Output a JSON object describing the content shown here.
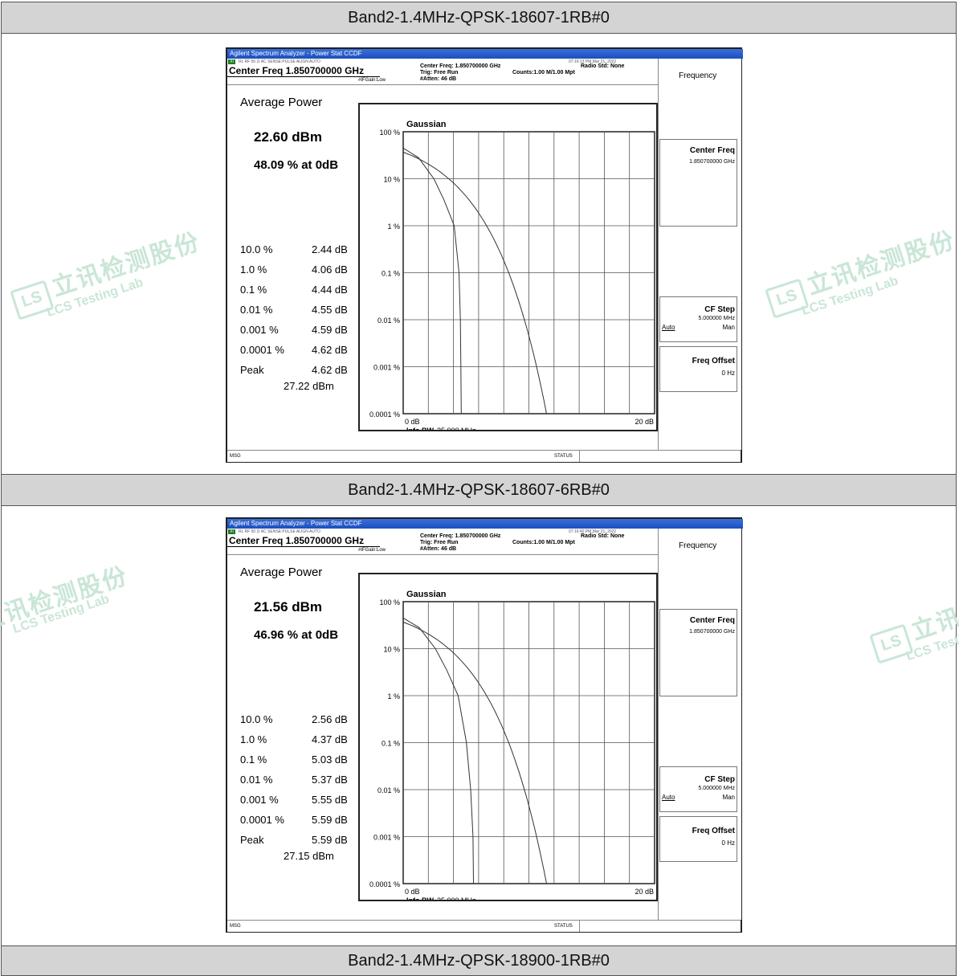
{
  "sections": [
    {
      "header": "Band2-1.4MHz-QPSK-18607-1RB#0",
      "screen": {
        "window_title": "Agilent Spectrum Analyzer - Power Stat CCDF",
        "tag": "XI",
        "top_strip": "RL       RF    50 Ω  AC                     SENSE:PULSE                ALIGN AUTO",
        "timestamp": "07:16:13 PM Mar 21, 2022",
        "center_freq": "Center Freq 1.850700000 GHz",
        "if_gain": "#IFGain:Low",
        "info_lines": [
          "Center Freq: 1.850700000 GHz",
          "Trig: Free Run",
          "#Atten: 46 dB"
        ],
        "counts": "Counts:1.00 M/1.00 Mpt",
        "radio_std": "Radio Std: None",
        "avg_title": "Average Power",
        "avg_value": "22.60 dBm",
        "avg_pct": "48.09 % at 0dB",
        "stats": [
          {
            "pct": "10.0 %",
            "val": "2.44 dB"
          },
          {
            "pct": "1.0 %",
            "val": "4.06 dB"
          },
          {
            "pct": "0.1 %",
            "val": "4.44 dB"
          },
          {
            "pct": "0.01 %",
            "val": "4.55 dB"
          },
          {
            "pct": "0.001 %",
            "val": "4.59 dB"
          },
          {
            "pct": "0.0001 %",
            "val": "4.62 dB"
          },
          {
            "pct": "Peak",
            "val": "4.62 dB"
          }
        ],
        "peak_dbm": "27.22 dBm",
        "graph_title": "Gaussian",
        "x_left": "0 dB",
        "x_right": "20 dB",
        "info_bw_label": "Info BW",
        "info_bw_value": "25.000 MHz",
        "y_labels": [
          "100 %",
          "10 %",
          "1 %",
          "0.1 %",
          "0.01 %",
          "0.001 %",
          "0.0001 %"
        ],
        "softkeys": {
          "menu": "Frequency",
          "center_freq_label": "Center Freq",
          "center_freq_value": "1.850700000 GHz",
          "cf_step_label": "CF Step",
          "cf_step_value": "5.000000 MHz",
          "cf_step_auto": "Auto",
          "cf_step_man": "Man",
          "freq_offset_label": "Freq Offset",
          "freq_offset_value": "0 Hz"
        },
        "msg": "MSG",
        "status": "STATUS"
      }
    },
    {
      "header": "Band2-1.4MHz-QPSK-18607-6RB#0",
      "screen": {
        "window_title": "Agilent Spectrum Analyzer - Power Stat CCDF",
        "tag": "XI",
        "top_strip": "RL       RF    50 Ω  AC                     SENSE:PULSE                ALIGN AUTO",
        "timestamp": "07:16:40 PM Mar 21, 2022",
        "center_freq": "Center Freq 1.850700000 GHz",
        "if_gain": "#IFGain:Low",
        "info_lines": [
          "Center Freq: 1.850700000 GHz",
          "Trig: Free Run",
          "#Atten: 46 dB"
        ],
        "counts": "Counts:1.00 M/1.00 Mpt",
        "radio_std": "Radio Std: None",
        "avg_title": "Average Power",
        "avg_value": "21.56 dBm",
        "avg_pct": "46.96 % at 0dB",
        "stats": [
          {
            "pct": "10.0 %",
            "val": "2.56 dB"
          },
          {
            "pct": "1.0 %",
            "val": "4.37 dB"
          },
          {
            "pct": "0.1 %",
            "val": "5.03 dB"
          },
          {
            "pct": "0.01 %",
            "val": "5.37 dB"
          },
          {
            "pct": "0.001 %",
            "val": "5.55 dB"
          },
          {
            "pct": "0.0001 %",
            "val": "5.59 dB"
          },
          {
            "pct": "Peak",
            "val": "5.59 dB"
          }
        ],
        "peak_dbm": "27.15 dBm",
        "graph_title": "Gaussian",
        "x_left": "0 dB",
        "x_right": "20 dB",
        "info_bw_label": "Info BW",
        "info_bw_value": "25.000 MHz",
        "y_labels": [
          "100 %",
          "10 %",
          "1 %",
          "0.1 %",
          "0.01 %",
          "0.001 %",
          "0.0001 %"
        ],
        "softkeys": {
          "menu": "Frequency",
          "center_freq_label": "Center Freq",
          "center_freq_value": "1.850700000 GHz",
          "cf_step_label": "CF Step",
          "cf_step_value": "5.000000 MHz",
          "cf_step_auto": "Auto",
          "cf_step_man": "Man",
          "freq_offset_label": "Freq Offset",
          "freq_offset_value": "0 Hz"
        },
        "msg": "MSG",
        "status": "STATUS"
      }
    },
    {
      "header": "Band2-1.4MHz-QPSK-18900-1RB#0"
    }
  ],
  "watermark": {
    "cn": "立讯检测股份",
    "en": "LCS Testing Lab",
    "logo": "LS"
  },
  "colors": {
    "header_bg": "#d4d4d4",
    "titlebar": "#2a5fd0",
    "watermark": "#c9e6d6"
  }
}
